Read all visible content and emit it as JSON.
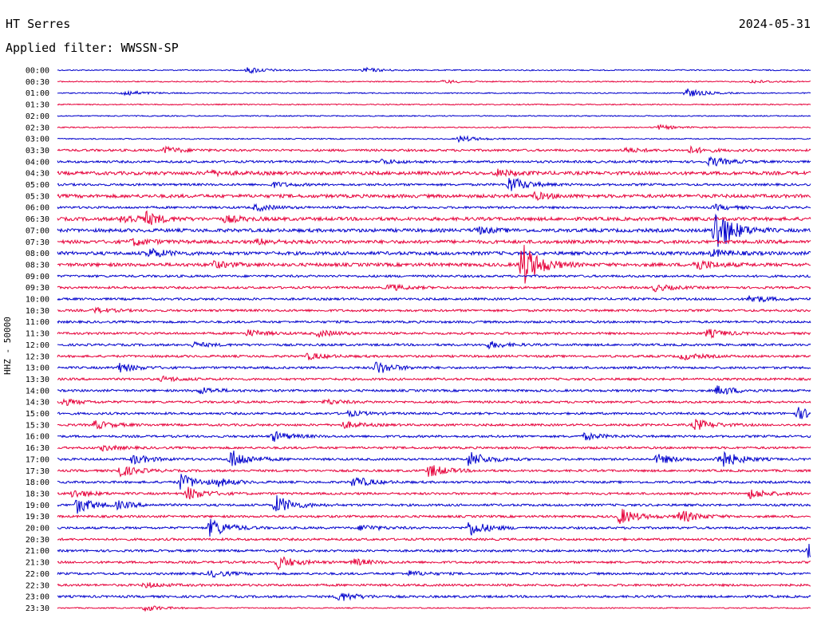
{
  "header": {
    "station": "HT Serres",
    "date": "2024-05-31",
    "filter_label": "Applied filter: WWSSN-SP"
  },
  "chart_data": {
    "type": "line",
    "title": "HT Serres",
    "ylabel": "HHZ - 50000",
    "colors": [
      "#0000cc",
      "#e6003a"
    ],
    "tick_labels": [
      "00:00",
      "00:30",
      "01:00",
      "01:30",
      "02:00",
      "02:30",
      "03:00",
      "03:30",
      "04:00",
      "04:30",
      "05:00",
      "05:30",
      "06:00",
      "06:30",
      "07:00",
      "07:30",
      "08:00",
      "08:30",
      "09:00",
      "09:30",
      "10:00",
      "10:30",
      "11:00",
      "11:30",
      "12:00",
      "12:30",
      "13:00",
      "13:30",
      "14:00",
      "14:30",
      "15:00",
      "15:30",
      "16:00",
      "16:30",
      "17:00",
      "17:30",
      "18:00",
      "18:30",
      "19:00",
      "19:30",
      "20:00",
      "20:30",
      "21:00",
      "21:30",
      "22:00",
      "22:30",
      "23:00",
      "23:30"
    ],
    "noise_level": [
      1,
      1,
      1,
      1,
      1,
      1,
      1,
      2,
      2,
      3,
      2,
      3,
      2,
      3,
      3,
      3,
      3,
      3,
      2,
      2,
      2,
      2,
      2,
      2,
      2,
      2,
      2,
      2,
      2,
      2,
      2,
      2,
      2,
      2,
      2,
      2,
      2,
      2,
      2,
      2,
      2,
      2,
      2,
      2,
      2,
      2,
      2,
      1
    ],
    "events": [
      {
        "trace": 0,
        "minute": 7.6,
        "amp": 4
      },
      {
        "trace": 0,
        "minute": 12.2,
        "amp": 3
      },
      {
        "trace": 1,
        "minute": 15.4,
        "amp": 2
      },
      {
        "trace": 1,
        "minute": 27.7,
        "amp": 2
      },
      {
        "trace": 2,
        "minute": 2.6,
        "amp": 4
      },
      {
        "trace": 2,
        "minute": 25.0,
        "amp": 6
      },
      {
        "trace": 5,
        "minute": 23.9,
        "amp": 3
      },
      {
        "trace": 6,
        "minute": 16.0,
        "amp": 4
      },
      {
        "trace": 7,
        "minute": 4.3,
        "amp": 4
      },
      {
        "trace": 7,
        "minute": 22.6,
        "amp": 3
      },
      {
        "trace": 7,
        "minute": 25.2,
        "amp": 4
      },
      {
        "trace": 8,
        "minute": 26.0,
        "amp": 6
      },
      {
        "trace": 8,
        "minute": 12.9,
        "amp": 3
      },
      {
        "trace": 9,
        "minute": 17.5,
        "amp": 4
      },
      {
        "trace": 9,
        "minute": 6.0,
        "amp": 3
      },
      {
        "trace": 10,
        "minute": 18.0,
        "amp": 10
      },
      {
        "trace": 10,
        "minute": 8.6,
        "amp": 3
      },
      {
        "trace": 11,
        "minute": 19.0,
        "amp": 4
      },
      {
        "trace": 12,
        "minute": 7.9,
        "amp": 4
      },
      {
        "trace": 12,
        "minute": 26.2,
        "amp": 3
      },
      {
        "trace": 13,
        "minute": 2.6,
        "amp": 6
      },
      {
        "trace": 13,
        "minute": 3.5,
        "amp": 7
      },
      {
        "trace": 13,
        "minute": 6.7,
        "amp": 4
      },
      {
        "trace": 14,
        "minute": 26.2,
        "amp": 30
      },
      {
        "trace": 14,
        "minute": 16.7,
        "amp": 4
      },
      {
        "trace": 15,
        "minute": 3.0,
        "amp": 4
      },
      {
        "trace": 15,
        "minute": 8.0,
        "amp": 3
      },
      {
        "trace": 16,
        "minute": 3.6,
        "amp": 6
      },
      {
        "trace": 16,
        "minute": 26.1,
        "amp": 4
      },
      {
        "trace": 17,
        "minute": 18.5,
        "amp": 28
      },
      {
        "trace": 17,
        "minute": 25.4,
        "amp": 7
      },
      {
        "trace": 17,
        "minute": 6.2,
        "amp": 4
      },
      {
        "trace": 19,
        "minute": 13.2,
        "amp": 4
      },
      {
        "trace": 19,
        "minute": 23.8,
        "amp": 4
      },
      {
        "trace": 20,
        "minute": 27.6,
        "amp": 5
      },
      {
        "trace": 21,
        "minute": 1.5,
        "amp": 3
      },
      {
        "trace": 23,
        "minute": 7.6,
        "amp": 4
      },
      {
        "trace": 23,
        "minute": 10.4,
        "amp": 4
      },
      {
        "trace": 23,
        "minute": 25.9,
        "amp": 5
      },
      {
        "trace": 24,
        "minute": 17.2,
        "amp": 4
      },
      {
        "trace": 24,
        "minute": 5.4,
        "amp": 3
      },
      {
        "trace": 25,
        "minute": 10.0,
        "amp": 4
      },
      {
        "trace": 25,
        "minute": 24.9,
        "amp": 4
      },
      {
        "trace": 26,
        "minute": 2.4,
        "amp": 6
      },
      {
        "trace": 26,
        "minute": 12.7,
        "amp": 8
      },
      {
        "trace": 27,
        "minute": 4.2,
        "amp": 3
      },
      {
        "trace": 28,
        "minute": 5.7,
        "amp": 4
      },
      {
        "trace": 28,
        "minute": 26.3,
        "amp": 6
      },
      {
        "trace": 29,
        "minute": 0.2,
        "amp": 4
      },
      {
        "trace": 29,
        "minute": 10.7,
        "amp": 3
      },
      {
        "trace": 30,
        "minute": 29.5,
        "amp": 7
      },
      {
        "trace": 30,
        "minute": 11.6,
        "amp": 3
      },
      {
        "trace": 31,
        "minute": 1.5,
        "amp": 5
      },
      {
        "trace": 31,
        "minute": 25.4,
        "amp": 7
      },
      {
        "trace": 31,
        "minute": 11.4,
        "amp": 4
      },
      {
        "trace": 32,
        "minute": 8.6,
        "amp": 6
      },
      {
        "trace": 32,
        "minute": 21.0,
        "amp": 4
      },
      {
        "trace": 33,
        "minute": 1.8,
        "amp": 3
      },
      {
        "trace": 34,
        "minute": 3.0,
        "amp": 6
      },
      {
        "trace": 34,
        "minute": 6.9,
        "amp": 12
      },
      {
        "trace": 34,
        "minute": 16.4,
        "amp": 10
      },
      {
        "trace": 34,
        "minute": 23.9,
        "amp": 6
      },
      {
        "trace": 34,
        "minute": 26.3,
        "amp": 14
      },
      {
        "trace": 35,
        "minute": 2.4,
        "amp": 8
      },
      {
        "trace": 35,
        "minute": 14.8,
        "amp": 8
      },
      {
        "trace": 36,
        "minute": 4.9,
        "amp": 10
      },
      {
        "trace": 36,
        "minute": 11.8,
        "amp": 7
      },
      {
        "trace": 36,
        "minute": 6.4,
        "amp": 4
      },
      {
        "trace": 37,
        "minute": 0.6,
        "amp": 5
      },
      {
        "trace": 37,
        "minute": 5.2,
        "amp": 8
      },
      {
        "trace": 37,
        "minute": 27.6,
        "amp": 6
      },
      {
        "trace": 38,
        "minute": 0.8,
        "amp": 10
      },
      {
        "trace": 38,
        "minute": 8.7,
        "amp": 12
      },
      {
        "trace": 38,
        "minute": 2.4,
        "amp": 4
      },
      {
        "trace": 39,
        "minute": 22.4,
        "amp": 10
      },
      {
        "trace": 39,
        "minute": 24.8,
        "amp": 8
      },
      {
        "trace": 40,
        "minute": 6.1,
        "amp": 12
      },
      {
        "trace": 40,
        "minute": 12.1,
        "amp": 4
      },
      {
        "trace": 40,
        "minute": 16.4,
        "amp": 10
      },
      {
        "trace": 42,
        "minute": 29.9,
        "amp": 8
      },
      {
        "trace": 43,
        "minute": 8.8,
        "amp": 8
      },
      {
        "trace": 43,
        "minute": 11.8,
        "amp": 4
      },
      {
        "trace": 44,
        "minute": 6.1,
        "amp": 4
      },
      {
        "trace": 44,
        "minute": 14.0,
        "amp": 3
      },
      {
        "trace": 45,
        "minute": 3.5,
        "amp": 3
      },
      {
        "trace": 46,
        "minute": 11.2,
        "amp": 6
      },
      {
        "trace": 47,
        "minute": 3.5,
        "amp": 4
      }
    ]
  }
}
